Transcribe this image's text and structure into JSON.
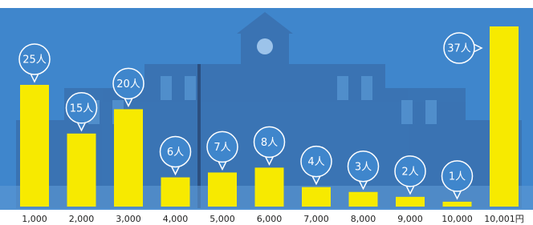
{
  "chart_data": {
    "type": "bar",
    "categories": [
      "1,000",
      "2,000",
      "3,000",
      "4,000",
      "5,000",
      "6,000",
      "7,000",
      "8,000",
      "9,000",
      "10,000",
      "10,001円"
    ],
    "values": [
      25,
      15,
      20,
      6,
      7,
      8,
      4,
      3,
      2,
      1,
      37
    ],
    "value_labels": [
      "25人",
      "15人",
      "20人",
      "6人",
      "7人",
      "8人",
      "4人",
      "3人",
      "2人",
      "1人",
      "37人"
    ],
    "color": "#f7ea00"
  }
}
